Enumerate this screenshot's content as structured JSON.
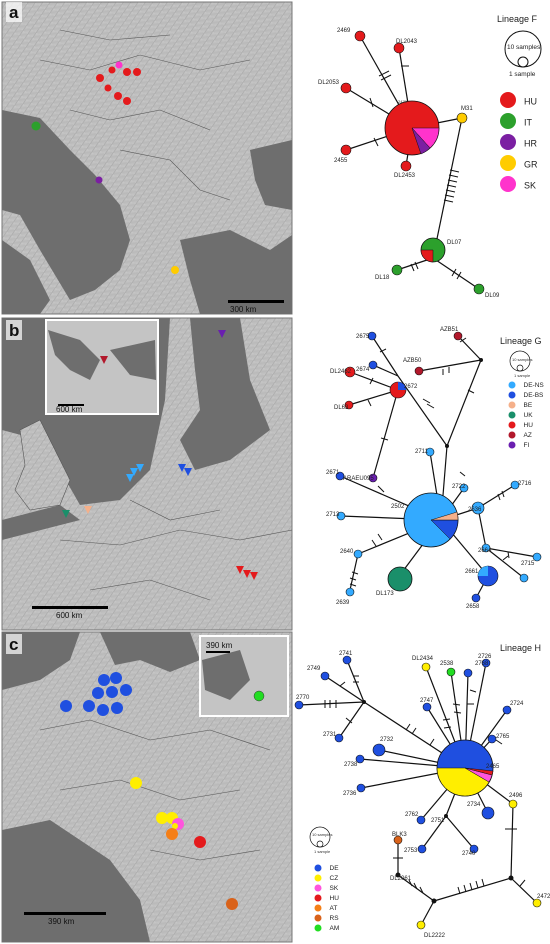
{
  "panels": [
    {
      "panel_label": "a",
      "lineage_title": "Lineage F",
      "scale_bar": "300 km",
      "size_legend": {
        "large": "10 samples",
        "small": "1 sample"
      },
      "legend": [
        {
          "code": "HU",
          "color": "#e41a1c"
        },
        {
          "code": "IT",
          "color": "#2ca02c"
        },
        {
          "code": "HR",
          "color": "#7b1fa2"
        },
        {
          "code": "GR",
          "color": "#ffcc00"
        },
        {
          "code": "SK",
          "color": "#ff33cc"
        }
      ],
      "node_labels": [
        "2469",
        "DL2043",
        "DL2053",
        "M31",
        "2455",
        "DL2453",
        "2479",
        "DL07",
        "DL18",
        "DL09"
      ]
    },
    {
      "panel_label": "b",
      "lineage_title": "Lineage G",
      "scale_bar": "600 km",
      "inset_scale_bar": "600 km",
      "size_legend": {
        "large": "10 samples",
        "small": "1 sample"
      },
      "legend": [
        {
          "code": "DE-NS",
          "color": "#33aaff"
        },
        {
          "code": "DE-BS",
          "color": "#1f4fe0"
        },
        {
          "code": "BE",
          "color": "#f5b08a"
        },
        {
          "code": "UK",
          "color": "#1a8f6a"
        },
        {
          "code": "HU",
          "color": "#e41a1c"
        },
        {
          "code": "AZ",
          "color": "#b2182b"
        },
        {
          "code": "FI",
          "color": "#6a1fb0"
        }
      ],
      "node_labels": [
        "2675",
        "AZB51",
        "2674",
        "AZB50",
        "DL2462",
        "2672",
        "DL63",
        "ARAEU095",
        "2711",
        "2671",
        "2722",
        "2716",
        "2502",
        "2713",
        "2636",
        "2640",
        "2664",
        "2715",
        "2661",
        "DL173",
        "2639",
        "2658"
      ]
    },
    {
      "panel_label": "c",
      "lineage_title": "Lineage H",
      "scale_bar": "390 km",
      "inset_scale_bar": "390 km",
      "size_legend": {
        "large": "10 samples",
        "small": "1 sample"
      },
      "legend": [
        {
          "code": "DE",
          "color": "#1f4fe0"
        },
        {
          "code": "CZ",
          "color": "#ffee00"
        },
        {
          "code": "SK",
          "color": "#ff55dd"
        },
        {
          "code": "HU",
          "color": "#e41a1c"
        },
        {
          "code": "AT",
          "color": "#f57f17"
        },
        {
          "code": "RS",
          "color": "#d9621a"
        },
        {
          "code": "AM",
          "color": "#22dd22"
        }
      ],
      "node_labels": [
        "2741",
        "DL2434",
        "2726",
        "2749",
        "2538",
        "2768",
        "2770",
        "2747",
        "2724",
        "2765",
        "2731",
        "2732",
        "2465",
        "2738",
        "2496",
        "2736",
        "2734",
        "2762",
        "2751",
        "2753",
        "2740",
        "BLK3",
        "DL2061",
        "2472",
        "DL2222"
      ]
    }
  ]
}
